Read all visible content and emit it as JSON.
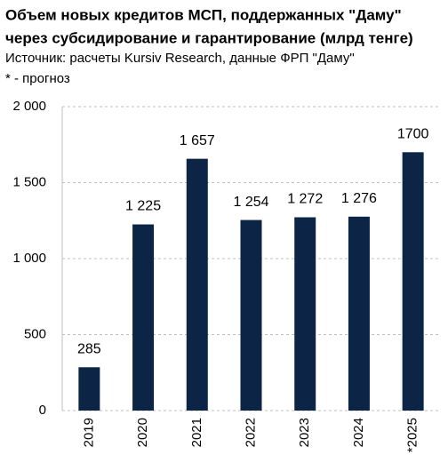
{
  "chart_data": {
    "type": "bar",
    "title": [
      "Объем новых кредитов МСП, поддержанных \"Даму\"",
      "через субсидирование и гарантирование (млрд тенге)"
    ],
    "subtitle": "Источник: расчеты Kursiv Research, данные ФРП \"Даму\"",
    "note": "* - прогноз",
    "categories": [
      "2019",
      "2020",
      "2021",
      "2022",
      "2023",
      "2024",
      "*2025"
    ],
    "values": [
      285,
      1225,
      1657,
      1254,
      1272,
      1276,
      1700
    ],
    "value_labels": [
      "285",
      "1 225",
      "1 657",
      "1 254",
      "1 272",
      "1 276",
      "1700"
    ],
    "color": "#0c2547",
    "ylim": [
      0,
      2000
    ],
    "yticks": [
      0,
      500,
      {
        "value": 1000,
        "label": "1 000"
      },
      {
        "value": 1500,
        "label": "1 500"
      },
      {
        "value": 2000,
        "label": "2 000"
      }
    ],
    "grid": true
  }
}
